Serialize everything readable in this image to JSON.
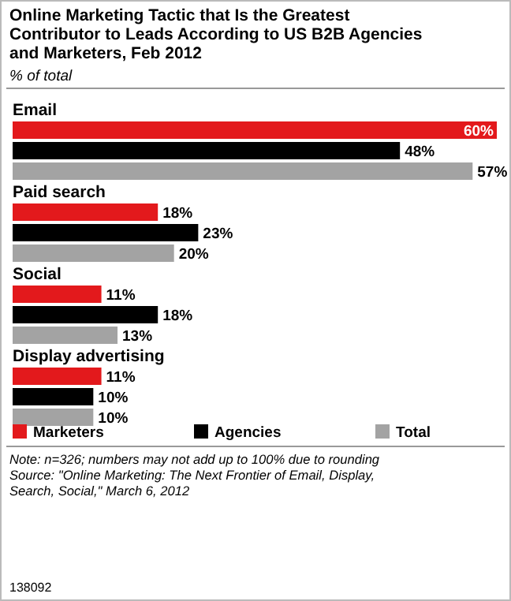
{
  "chart_data": {
    "type": "bar",
    "orientation": "horizontal",
    "title": "Online Marketing Tactic that Is the Greatest Contributor to Leads According to US B2B Agencies and Marketers, Feb 2012",
    "subtitle": "% of total",
    "categories": [
      "Email",
      "Paid search",
      "Social",
      "Display advertising"
    ],
    "series": [
      {
        "name": "Marketers",
        "color": "#e3191c",
        "values": [
          60,
          18,
          11,
          11
        ],
        "value_labels": [
          "60%",
          "18%",
          "11%",
          "11%"
        ]
      },
      {
        "name": "Agencies",
        "color": "#000000",
        "values": [
          48,
          23,
          18,
          10
        ],
        "value_labels": [
          "48%",
          "23%",
          "18%",
          "10%"
        ]
      },
      {
        "name": "Total",
        "color": "#a3a3a3",
        "values": [
          57,
          20,
          13,
          10
        ],
        "value_labels": [
          "57%",
          "20%",
          "13%",
          "10%"
        ]
      }
    ],
    "legend": "bottom",
    "annotations": [
      "Note: n=326; numbers may not add up to 100% due to rounding",
      "Source: \"Online Marketing: The Next Frontier of Email, Display, Search, Social,\" March 6, 2012",
      "138092"
    ]
  }
}
